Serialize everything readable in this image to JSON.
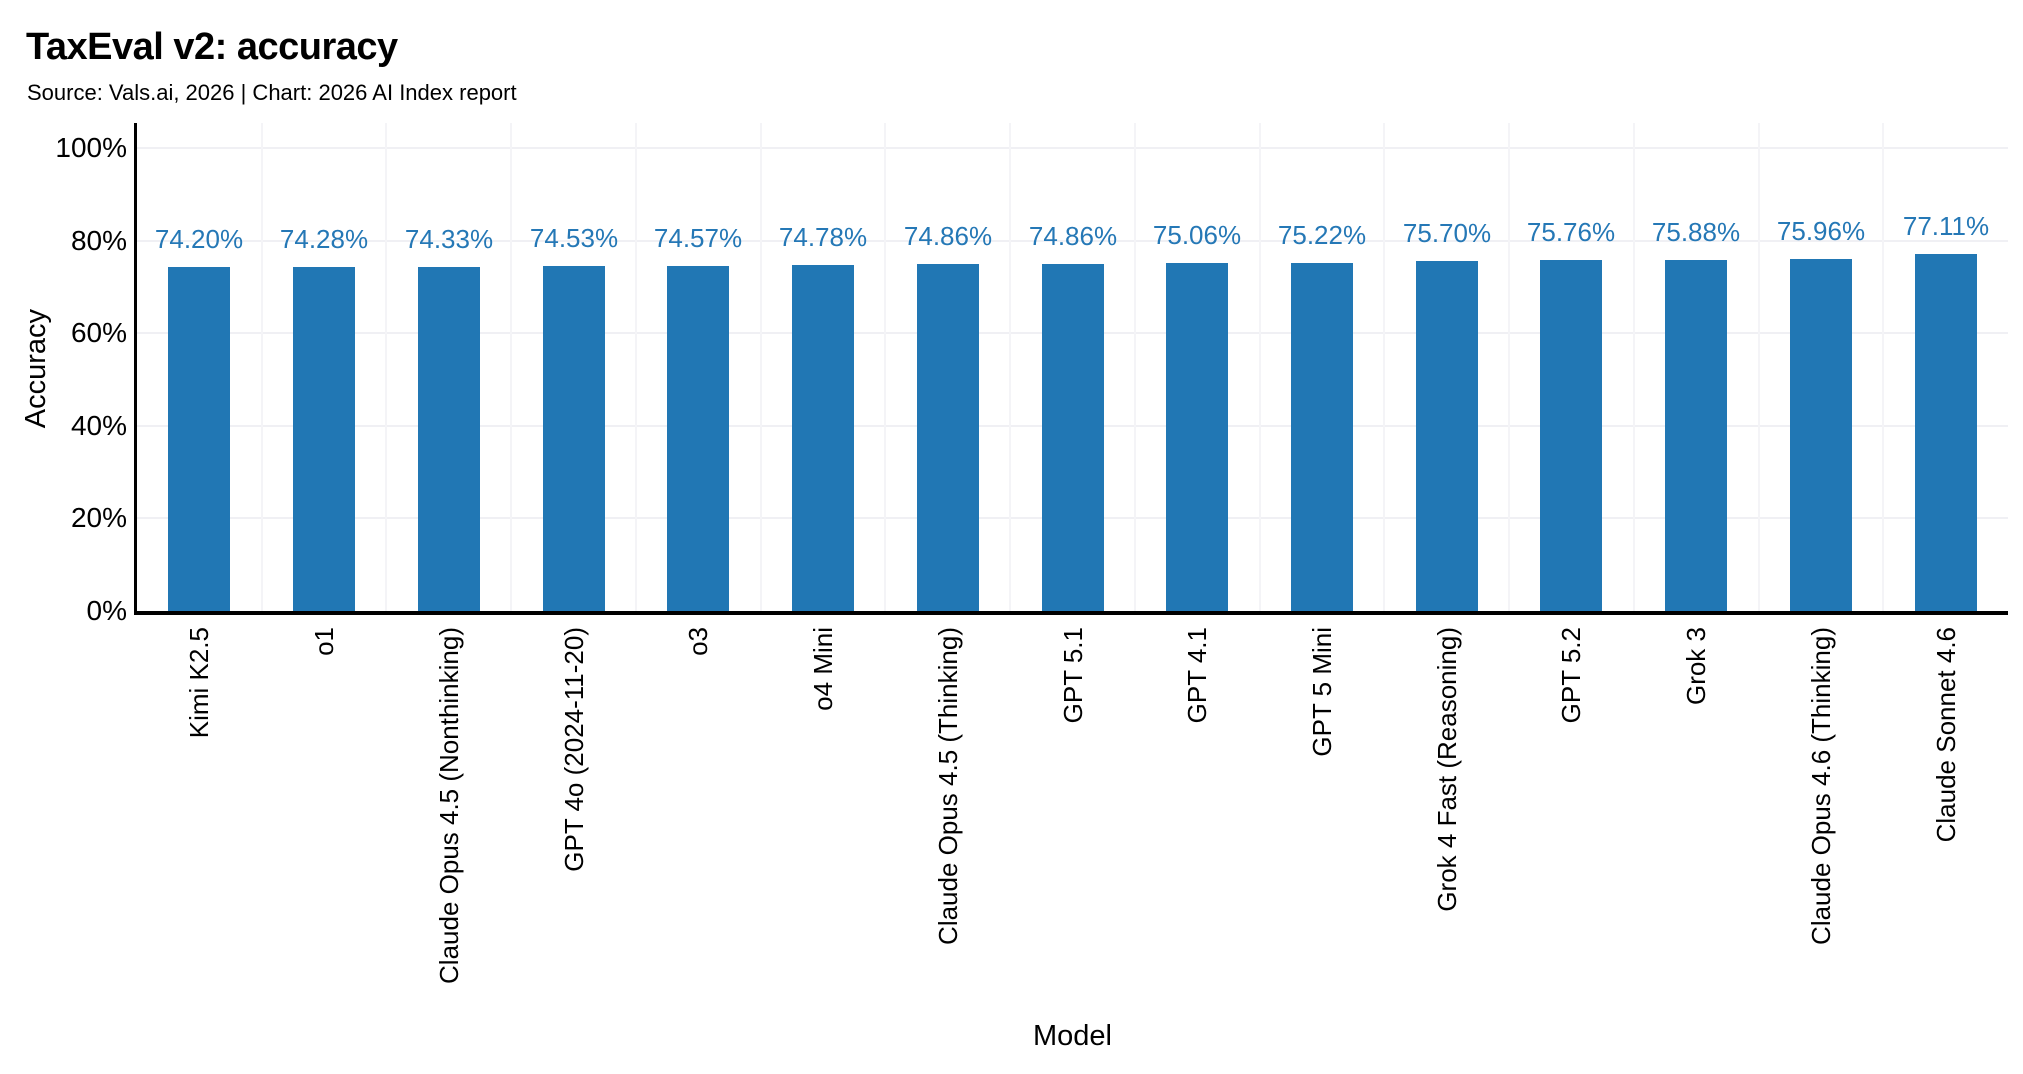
{
  "header": {
    "title": "TaxEval v2: accuracy",
    "subtitle": "Source: Vals.ai, 2026 | Chart: 2026 AI Index report"
  },
  "chart_data": {
    "type": "bar",
    "title": "TaxEval v2: accuracy",
    "subtitle": "Source: Vals.ai, 2026 | Chart: 2026 AI Index report",
    "xlabel": "Model",
    "ylabel": "Accuracy",
    "categories": [
      "Kimi K2.5",
      "o1",
      "Claude Opus 4.5 (Nonthinking)",
      "GPT 4o (2024-11-20)",
      "o3",
      "o4 Mini",
      "Claude Opus 4.5 (Thinking)",
      "GPT 5.1",
      "GPT 4.1",
      "GPT 5 Mini",
      "Grok 4 Fast (Reasoning)",
      "GPT 5.2",
      "Grok 3",
      "Claude Opus 4.6 (Thinking)",
      "Claude Sonnet 4.6"
    ],
    "values": [
      74.2,
      74.28,
      74.33,
      74.53,
      74.57,
      74.78,
      74.86,
      74.86,
      75.06,
      75.22,
      75.7,
      75.76,
      75.88,
      75.96,
      77.11
    ],
    "value_labels": [
      "74.20%",
      "74.28%",
      "74.33%",
      "74.53%",
      "74.57%",
      "74.78%",
      "74.86%",
      "74.86%",
      "75.06%",
      "75.22%",
      "75.70%",
      "75.76%",
      "75.88%",
      "75.96%",
      "77.11%"
    ],
    "ylim": [
      0,
      100
    ],
    "yticks": [
      0,
      20,
      40,
      60,
      80,
      100
    ],
    "ytick_labels": [
      "0%",
      "20%",
      "40%",
      "60%",
      "80%",
      "100%"
    ],
    "grid": "faint horizontal lines at y ticks, faint vertical lines at category boundaries",
    "legend_position": "none",
    "bar_color": "#2177b4",
    "value_label_color": "#2578b6",
    "axis_color": "#000000",
    "gridline_color": "#f0f0f4"
  }
}
